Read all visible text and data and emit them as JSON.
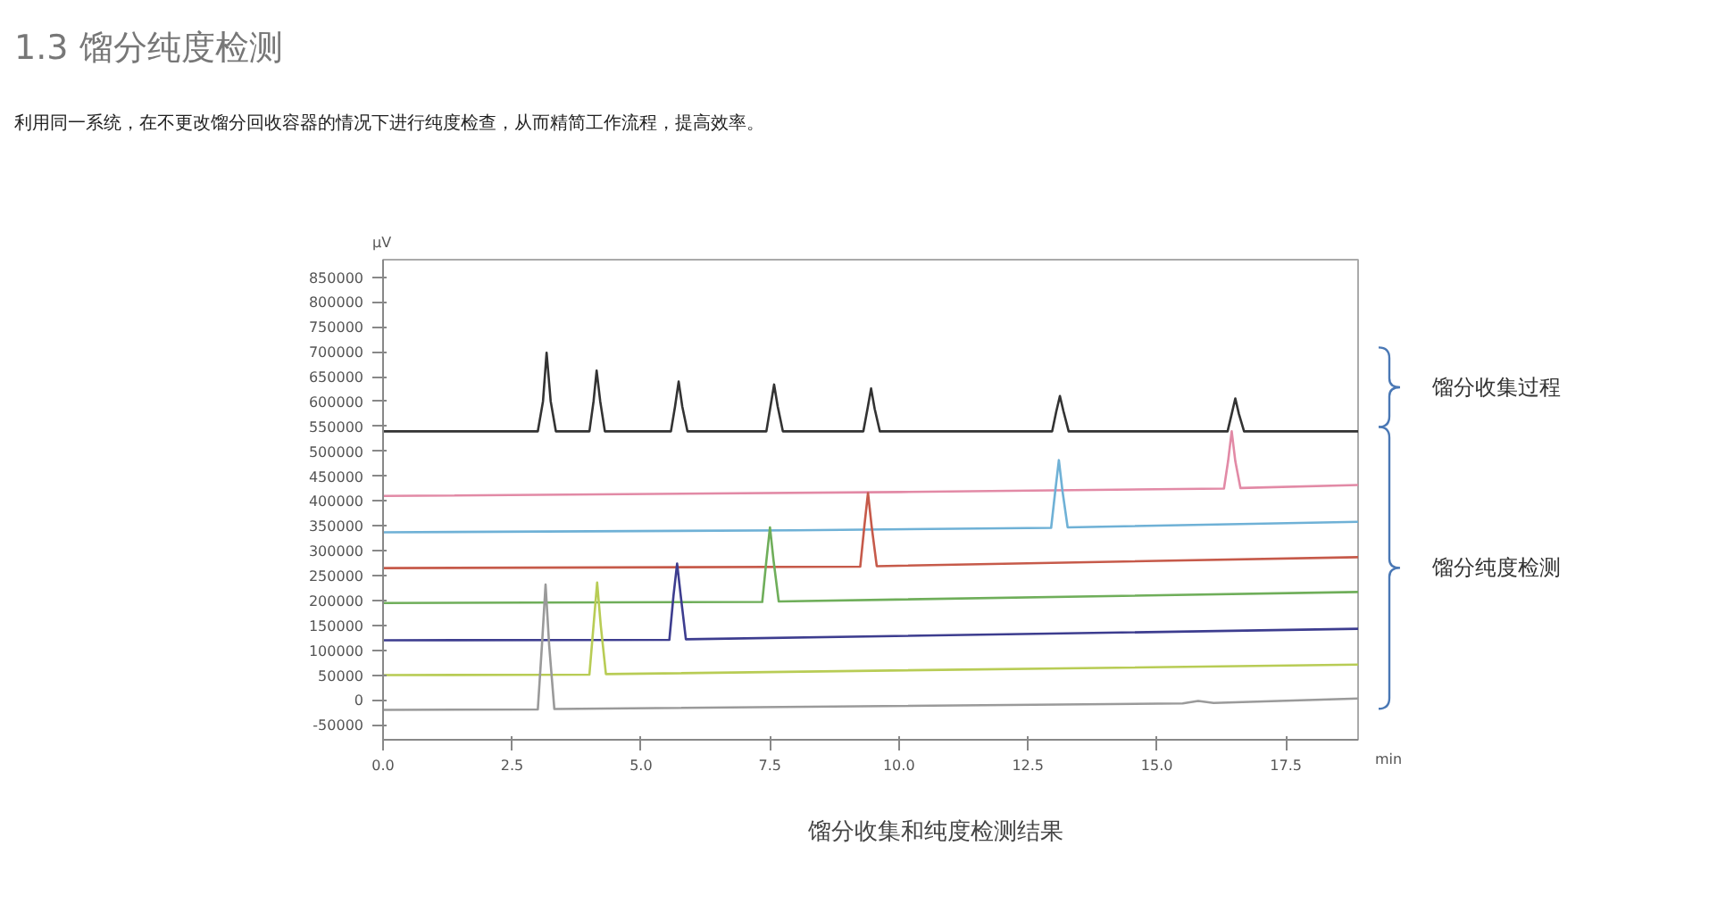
{
  "chart_data": {
    "type": "line",
    "title": "1.3 馏分纯度检测",
    "subtitle": "利用同一系统，在不更改馏分回收容器的情况下进行纯度检查，从而精简工作流程，提高效率。",
    "xlabel": "min",
    "ylabel": "μV",
    "annotations": [
      "馏分收集过程",
      "馏分纯度检测",
      "馏分收集和纯度检测结果"
    ],
    "xlim": [
      0,
      18.9
    ],
    "ylim": [
      -80000,
      885000
    ],
    "xticks": [
      {
        "value": 0,
        "label": "0.0"
      },
      {
        "value": 2.5,
        "label": "2.5"
      },
      {
        "value": 5,
        "label": "5.0"
      },
      {
        "value": 7.5,
        "label": "7.5"
      },
      {
        "value": 10,
        "label": "10.0"
      },
      {
        "value": 12.5,
        "label": "12.5"
      },
      {
        "value": 15,
        "label": "15.0"
      },
      {
        "value": 17.5,
        "label": "17.5"
      }
    ],
    "yticks": [
      -50000,
      0,
      50000,
      100000,
      150000,
      200000,
      250000,
      300000,
      350000,
      400000,
      450000,
      500000,
      550000,
      600000,
      650000,
      700000,
      750000,
      800000,
      850000
    ],
    "grid": false,
    "marker": "none",
    "line_style": "solid",
    "series": [
      {
        "color": "#333333",
        "x": [
          0,
          3.0,
          3.1,
          3.17,
          3.25,
          3.35,
          4.0,
          4.08,
          4.14,
          4.21,
          4.3,
          5.58,
          5.66,
          5.73,
          5.8,
          5.9,
          7.43,
          7.51,
          7.58,
          7.65,
          7.75,
          9.31,
          9.39,
          9.46,
          9.53,
          9.63,
          12.97,
          13.05,
          13.12,
          13.19,
          13.29,
          16.37,
          16.45,
          16.52,
          16.59,
          16.69,
          18.9
        ],
        "values": [
          540000,
          540000,
          600000,
          698000,
          600000,
          540000,
          540000,
          600000,
          662000,
          600000,
          540000,
          540000,
          590000,
          640000,
          590000,
          540000,
          540000,
          590000,
          634000,
          590000,
          540000,
          540000,
          585000,
          626000,
          585000,
          540000,
          540000,
          580000,
          611000,
          580000,
          540000,
          540000,
          575000,
          606000,
          575000,
          540000,
          540000
        ]
      },
      {
        "color": "#e28aa6",
        "x": [
          0,
          10,
          16.3,
          16.38,
          16.45,
          16.52,
          16.62,
          18.9
        ],
        "values": [
          410000,
          418000,
          425000,
          480000,
          540000,
          480000,
          426000,
          432000
        ]
      },
      {
        "color": "#6fb1d6",
        "x": [
          0,
          8,
          12.95,
          13.03,
          13.1,
          13.17,
          13.27,
          18.9
        ],
        "values": [
          337000,
          341000,
          346000,
          420000,
          482000,
          420000,
          347000,
          358000
        ]
      },
      {
        "color": "#c65a4a",
        "x": [
          0,
          9.25,
          9.33,
          9.4,
          9.47,
          9.57,
          18.9
        ],
        "values": [
          265000,
          268000,
          350000,
          416000,
          350000,
          269000,
          287000
        ]
      },
      {
        "color": "#6fae5a",
        "x": [
          0,
          7.35,
          7.43,
          7.5,
          7.57,
          7.67,
          18.9
        ],
        "values": [
          195000,
          197000,
          280000,
          347000,
          280000,
          198000,
          217000
        ]
      },
      {
        "color": "#3d3d8f",
        "x": [
          0,
          5.55,
          5.63,
          5.7,
          5.77,
          5.87,
          18.9
        ],
        "values": [
          120000,
          121000,
          210000,
          274000,
          210000,
          122000,
          143000
        ]
      },
      {
        "color": "#b8cc55",
        "x": [
          0,
          4.0,
          4.08,
          4.15,
          4.22,
          4.32,
          18.9
        ],
        "values": [
          50000,
          51000,
          150000,
          236000,
          150000,
          52000,
          71000
        ]
      },
      {
        "color": "#9a9a9a",
        "x": [
          0,
          3.0,
          3.08,
          3.15,
          3.22,
          3.32,
          15.5,
          15.8,
          16.1,
          18.9
        ],
        "values": [
          -20000,
          -19000,
          110000,
          232000,
          110000,
          -18000,
          -7000,
          -2000,
          -6000,
          3000
        ]
      }
    ]
  }
}
